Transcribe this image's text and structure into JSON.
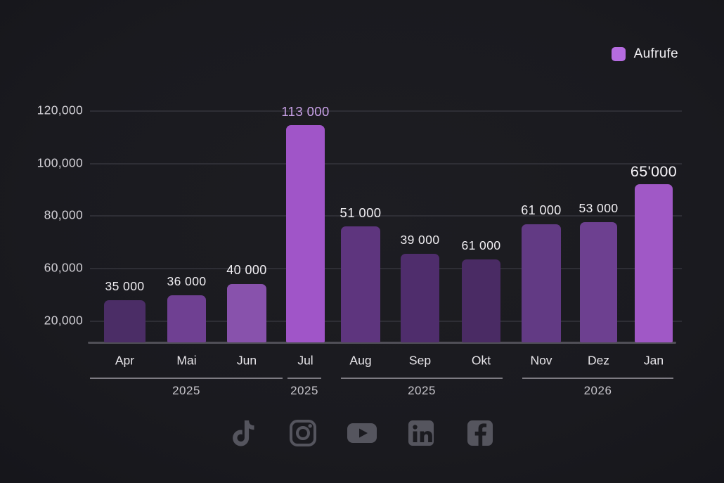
{
  "legend": {
    "label": "Aufrufe",
    "swatch_color": "#b56ce0"
  },
  "chart_data": {
    "type": "bar",
    "title": "",
    "series_name": "Aufrufe",
    "categories": [
      "Apr",
      "Mai",
      "Jun",
      "Jul",
      "Aug",
      "Sep",
      "Okt",
      "Nov",
      "Dez",
      "Jan"
    ],
    "values": [
      35000,
      36000,
      40000,
      113000,
      51000,
      39000,
      61000,
      61000,
      53000,
      65000
    ],
    "value_labels": [
      "35 000",
      "36 000",
      "40 000",
      "113 000",
      "51 000",
      "39 000",
      "61 000",
      "61 000",
      "53 000",
      "65'000"
    ],
    "bar_colors": [
      "#4b2d66",
      "#6f4092",
      "#8852ac",
      "#a055c8",
      "#5e357e",
      "#4f2d6c",
      "#4a2b64",
      "#623a84",
      "#6d4090",
      "#a058c6"
    ],
    "value_label_colors": [
      "#f1eff3",
      "#f1eff3",
      "#f1eff3",
      "#c9a2e8",
      "#f1eff3",
      "#f1eff3",
      "#f1eff3",
      "#f1eff3",
      "#f1eff3",
      "#f6f4f8"
    ],
    "y_ticks": [
      "120,000",
      "100,000",
      "80,000",
      "60,000",
      "20,000"
    ],
    "year_groups": [
      {
        "label": "2025",
        "from": "Apr",
        "to": "Jun"
      },
      {
        "label": "2025",
        "from": "Jul",
        "to": "Jul"
      },
      {
        "label": "2025",
        "from": "Aug",
        "to": "Okt"
      },
      {
        "label": "2026",
        "from": "Nov",
        "to": "Jan"
      }
    ],
    "legend_position": "top-right",
    "grid": "horizontal",
    "ylim": [
      0,
      130000
    ]
  },
  "footer_icons": [
    "tiktok-icon",
    "instagram-icon",
    "youtube-icon",
    "linkedin-icon",
    "facebook-icon"
  ],
  "colors": {
    "background": "#1b1b20",
    "grid": "#313137",
    "axis": "#504f57",
    "tick_label": "#d2d0d6",
    "month_label": "#e8e6ea",
    "year_label": "#c6c4ca",
    "icon": "#55555e"
  }
}
